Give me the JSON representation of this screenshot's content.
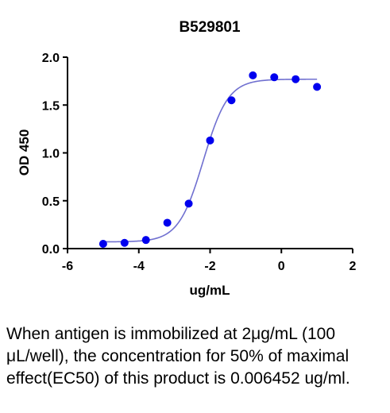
{
  "chart_data": {
    "type": "scatter",
    "title": "B529801",
    "xlabel": "ug/mL",
    "ylabel": "OD 450",
    "xlim": [
      -6,
      2
    ],
    "ylim": [
      0,
      2.0
    ],
    "x_ticks": [
      -6,
      -4,
      -2,
      0,
      2
    ],
    "x_tick_labels": [
      "-6",
      "-4",
      "-2",
      "0",
      "2"
    ],
    "y_ticks": [
      0,
      0.5,
      1.0,
      1.5,
      2.0
    ],
    "y_tick_labels": [
      "0.0",
      "0.5",
      "1.0",
      "1.5",
      "2.0"
    ],
    "grid": false,
    "series": [
      {
        "points": [
          {
            "x": -5.0,
            "y": 0.05
          },
          {
            "x": -4.4,
            "y": 0.06
          },
          {
            "x": -3.8,
            "y": 0.09
          },
          {
            "x": -3.2,
            "y": 0.27
          },
          {
            "x": -2.6,
            "y": 0.47
          },
          {
            "x": -2.0,
            "y": 1.13
          },
          {
            "x": -1.4,
            "y": 1.55
          },
          {
            "x": -0.8,
            "y": 1.81
          },
          {
            "x": -0.2,
            "y": 1.79
          },
          {
            "x": 0.4,
            "y": 1.77
          },
          {
            "x": 1.0,
            "y": 1.69
          }
        ],
        "color": "#0000ee"
      }
    ],
    "fit_curve": {
      "model": "4PL",
      "bottom": 0.07,
      "top": 1.77,
      "log_ec50": -2.19,
      "hill_slope": 1.25,
      "x_range": [
        -5.0,
        1.0
      ],
      "color": "#7070d0"
    }
  },
  "caption": "When antigen is immobilized at 2μg/mL (100 μL/well), the concentration for 50% of maximal effect(EC50) of this product is 0.006452 ug/ml."
}
